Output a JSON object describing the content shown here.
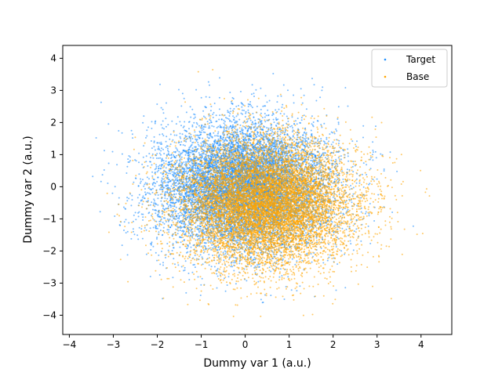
{
  "chart_data": {
    "type": "scatter",
    "title": "",
    "xlabel": "Dummy var 1 (a.u.)",
    "ylabel": "Dummy var 2 (a.u.)",
    "xlim": [
      -4.15,
      4.7
    ],
    "ylim": [
      -4.6,
      4.4
    ],
    "xticks": [
      -4,
      -3,
      -2,
      -1,
      0,
      1,
      2,
      3,
      4
    ],
    "yticks": [
      -4,
      -3,
      -2,
      -1,
      0,
      1,
      2,
      3,
      4
    ],
    "grid": false,
    "legend_position": "top-right",
    "series": [
      {
        "name": "Target",
        "color": "#1f8fff",
        "n_points": 10000,
        "distribution": "gaussian",
        "mean": [
          0.0,
          0.0
        ],
        "std": [
          1.0,
          1.0
        ],
        "seed": 11
      },
      {
        "name": "Base",
        "color": "#ffa500",
        "n_points": 10000,
        "distribution": "gaussian",
        "mean": [
          0.5,
          -0.5
        ],
        "std": [
          1.0,
          1.0
        ],
        "seed": 29
      }
    ]
  }
}
